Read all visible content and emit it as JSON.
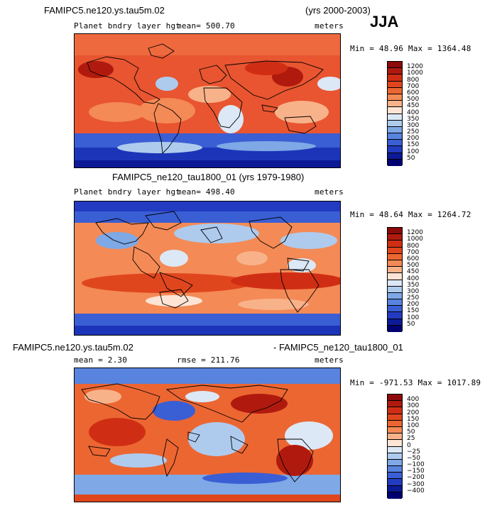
{
  "season": "JJA",
  "panel1": {
    "case": "FAMIPC5.ne120.ys.tau5m.02",
    "years": "(yrs 2000-2003)",
    "variable": "Planet bndry layer hgt",
    "mean": "mean= 500.70",
    "units": "meters",
    "minmax": "Min =  48.96 Max = 1364.48"
  },
  "panel2": {
    "case_years": "FAMIPC5_ne120_tau1800_01 (yrs 1979-1980)",
    "variable": "Planet bndry layer hgt",
    "mean": "mean= 498.40",
    "units": "meters",
    "minmax": "Min =  48.64 Max = 1264.72"
  },
  "panel3": {
    "case_a": "FAMIPC5.ne120.ys.tau5m.02",
    "case_b": "- FAMIPC5_ne120_tau1800_01",
    "mean": "mean =   2.30",
    "rmse": "rmse = 211.76",
    "units": "meters",
    "minmax": "Min = -971.53 Max = 1017.89"
  },
  "colorbar_levels": [
    "1200",
    "1000",
    "800",
    "700",
    "600",
    "500",
    "450",
    "400",
    "350",
    "300",
    "250",
    "200",
    "150",
    "100",
    "50"
  ],
  "colorbar_colors": [
    "#8c0a0a",
    "#b01a0e",
    "#d02e14",
    "#e0461e",
    "#ec6632",
    "#f48a56",
    "#f8b28a",
    "#fde4d4",
    "#dce8f6",
    "#aecbee",
    "#7ea8e6",
    "#5883de",
    "#3a5ed4",
    "#223bc0",
    "#0c1a96",
    "#000070"
  ],
  "diff_levels": [
    "400",
    "300",
    "200",
    "150",
    "100",
    "50",
    "25",
    "0",
    "−25",
    "−50",
    "−100",
    "−150",
    "−200",
    "−300",
    "−400"
  ],
  "diff_colors": [
    "#8c0a0a",
    "#b01a0e",
    "#d02e14",
    "#e0461e",
    "#ec6632",
    "#f48a56",
    "#f8b28a",
    "#fde4d4",
    "#dce8f6",
    "#aecbee",
    "#7ea8e6",
    "#5883de",
    "#3a5ed4",
    "#223bc0",
    "#0c1a96",
    "#000070"
  ]
}
